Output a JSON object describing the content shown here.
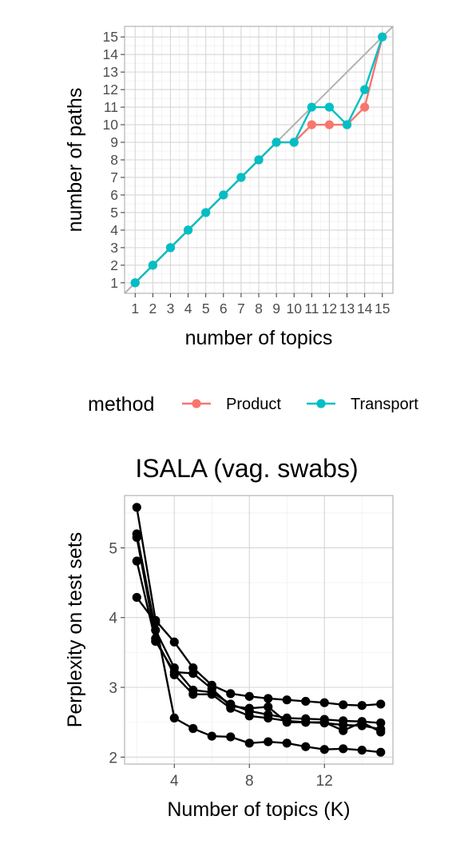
{
  "chart_data": [
    {
      "type": "line",
      "title": "",
      "xlabel": "number of topics",
      "ylabel": "number of paths",
      "xlim": [
        0.4,
        15.6
      ],
      "ylim": [
        0.4,
        15.6
      ],
      "x_ticks": [
        1,
        2,
        3,
        4,
        5,
        6,
        7,
        8,
        9,
        10,
        11,
        12,
        13,
        14,
        15
      ],
      "y_ticks": [
        1,
        2,
        3,
        4,
        5,
        6,
        7,
        8,
        9,
        10,
        11,
        12,
        13,
        14,
        15
      ],
      "grid": true,
      "reference_line": {
        "type": "identity",
        "color": "#b3b3b3"
      },
      "legend": {
        "title": "method",
        "position": "bottom"
      },
      "series": [
        {
          "name": "Product",
          "color": "#F8766D",
          "x": [
            1,
            2,
            3,
            4,
            5,
            6,
            7,
            8,
            9,
            10,
            11,
            12,
            13,
            14,
            15
          ],
          "y": [
            1,
            2,
            3,
            4,
            5,
            6,
            7,
            8,
            9,
            9,
            10,
            10,
            10,
            11,
            15
          ]
        },
        {
          "name": "Transport",
          "color": "#00BFC4",
          "x": [
            1,
            2,
            3,
            4,
            5,
            6,
            7,
            8,
            9,
            10,
            11,
            12,
            13,
            14,
            15
          ],
          "y": [
            1,
            2,
            3,
            4,
            5,
            6,
            7,
            8,
            9,
            9,
            11,
            11,
            10,
            12,
            15
          ]
        }
      ]
    },
    {
      "type": "line",
      "title": "ISALA (vag. swabs)",
      "xlabel": "Number of topics (K)",
      "ylabel": "Perplexity on test sets",
      "xlim": [
        1.35,
        15.65
      ],
      "ylim": [
        1.9,
        5.75
      ],
      "x_ticks": [
        4,
        8,
        12
      ],
      "y_ticks": [
        2,
        3,
        4,
        5
      ],
      "grid": true,
      "series": [
        {
          "color": "#000000",
          "x": [
            2,
            3,
            4,
            5,
            6,
            7,
            8,
            9,
            10,
            11,
            12,
            13,
            14,
            15
          ],
          "y": [
            5.58,
            3.96,
            3.65,
            3.28,
            3.03,
            2.91,
            2.87,
            2.84,
            2.82,
            2.8,
            2.78,
            2.75,
            2.74,
            2.76
          ]
        },
        {
          "color": "#000000",
          "x": [
            2,
            3,
            4,
            5,
            6,
            7,
            8,
            9,
            10,
            11,
            12,
            13,
            14,
            15
          ],
          "y": [
            5.2,
            3.82,
            3.28,
            2.96,
            2.93,
            2.76,
            2.66,
            2.61,
            2.56,
            2.55,
            2.54,
            2.52,
            2.51,
            2.49
          ]
        },
        {
          "color": "#000000",
          "x": [
            2,
            3,
            4,
            5,
            6,
            7,
            8,
            9,
            10,
            11,
            12,
            13,
            14,
            15
          ],
          "y": [
            5.15,
            3.7,
            3.18,
            2.9,
            2.9,
            2.7,
            2.59,
            2.56,
            2.52,
            2.5,
            2.49,
            2.46,
            2.45,
            2.4
          ]
        },
        {
          "color": "#000000",
          "x": [
            2,
            3,
            4,
            5,
            6,
            7,
            8,
            9,
            10,
            11,
            12,
            13,
            14,
            15
          ],
          "y": [
            4.81,
            3.66,
            3.22,
            3.2,
            2.98,
            2.73,
            2.7,
            2.72,
            2.5,
            2.5,
            2.5,
            2.38,
            2.5,
            2.36
          ]
        },
        {
          "color": "#000000",
          "x": [
            2,
            3,
            4,
            5,
            6,
            7,
            8,
            9,
            10,
            11,
            12,
            13,
            14,
            15
          ],
          "y": [
            4.29,
            3.93,
            2.56,
            2.41,
            2.3,
            2.29,
            2.2,
            2.22,
            2.2,
            2.15,
            2.11,
            2.12,
            2.1,
            2.07
          ]
        }
      ]
    }
  ]
}
